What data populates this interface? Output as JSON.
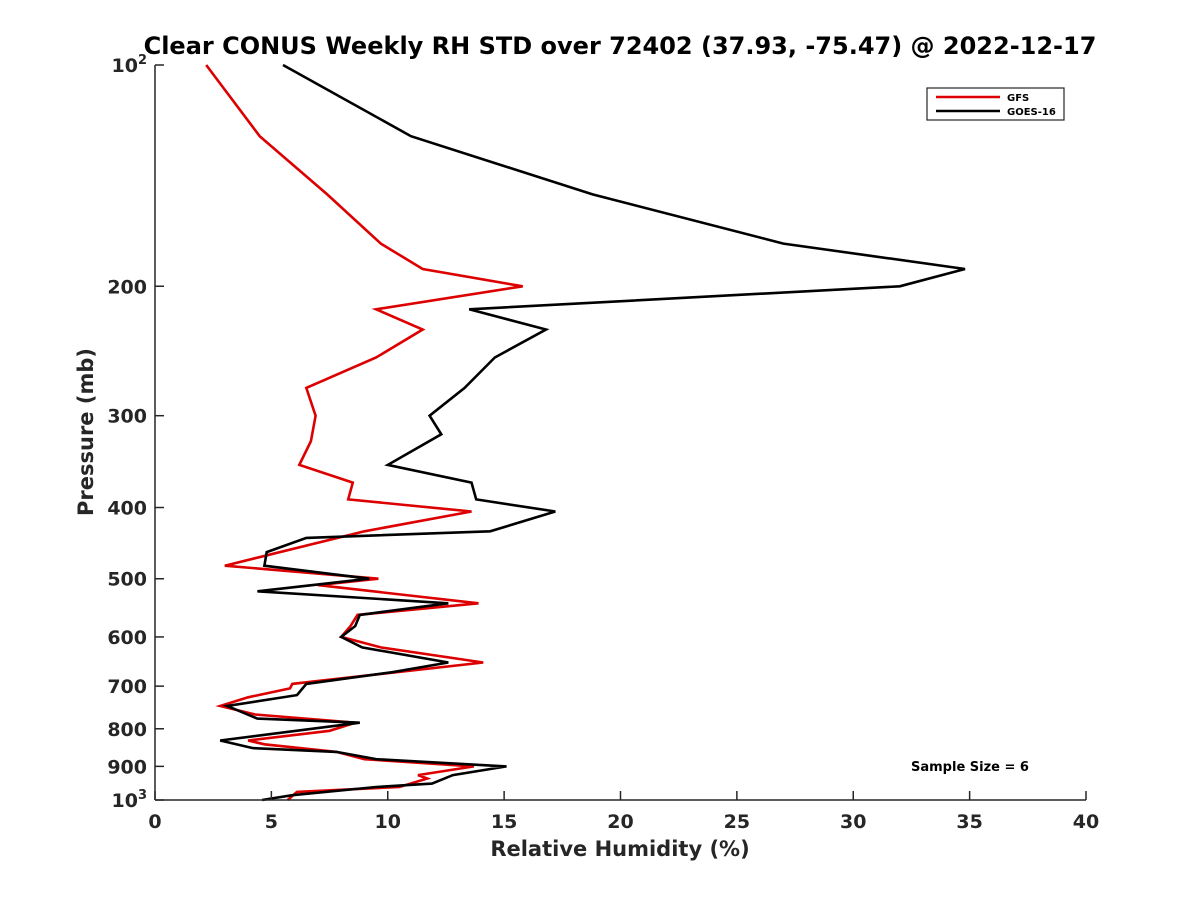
{
  "chart_data": {
    "type": "line",
    "title": "Clear CONUS Weekly RH STD over 72402 (37.93, -75.47) @ 2022-12-17",
    "xlabel": "Relative Humidity (%)",
    "ylabel": "Pressure (mb)",
    "xlim": [
      0,
      40
    ],
    "ylim": [
      100,
      1000
    ],
    "yscale": "log",
    "y_reversed": true,
    "grid": false,
    "legend_position": "top-right",
    "x_ticks": [
      0,
      5,
      10,
      15,
      20,
      25,
      30,
      35,
      40
    ],
    "x_tick_labels": [
      "0",
      "5",
      "10",
      "15",
      "20",
      "25",
      "30",
      "35",
      "40"
    ],
    "y_ticks": [
      100,
      200,
      300,
      400,
      500,
      600,
      700,
      800,
      900,
      1000
    ],
    "y_tick_labels": [
      {
        "base": "10",
        "exp": "2"
      },
      {
        "base": "200",
        "exp": ""
      },
      {
        "base": "300",
        "exp": ""
      },
      {
        "base": "400",
        "exp": ""
      },
      {
        "base": "500",
        "exp": ""
      },
      {
        "base": "600",
        "exp": ""
      },
      {
        "base": "700",
        "exp": ""
      },
      {
        "base": "800",
        "exp": ""
      },
      {
        "base": "900",
        "exp": ""
      },
      {
        "base": "10",
        "exp": "3"
      }
    ],
    "annotation": "Sample Size = 6",
    "series": [
      {
        "name": "GFS",
        "color": "#dd0000",
        "points": [
          [
            2.2,
            100
          ],
          [
            4.5,
            125
          ],
          [
            7.4,
            150
          ],
          [
            9.7,
            175
          ],
          [
            11.5,
            189.5
          ],
          [
            15.8,
            200
          ],
          [
            9.5,
            215
          ],
          [
            11.5,
            229
          ],
          [
            9.5,
            250
          ],
          [
            6.5,
            275
          ],
          [
            6.9,
            300
          ],
          [
            6.7,
            325
          ],
          [
            6.2,
            350
          ],
          [
            8.5,
            370
          ],
          [
            8.3,
            390
          ],
          [
            13.6,
            405
          ],
          [
            9.0,
            431
          ],
          [
            3.0,
            480
          ],
          [
            9.6,
            500
          ],
          [
            7.0,
            510
          ],
          [
            13.9,
            540
          ],
          [
            8.7,
            560
          ],
          [
            8.4,
            580
          ],
          [
            8.0,
            600
          ],
          [
            9.7,
            620
          ],
          [
            14.1,
            650
          ],
          [
            5.9,
            695
          ],
          [
            5.8,
            705
          ],
          [
            4.0,
            725
          ],
          [
            2.8,
            745
          ],
          [
            4.3,
            765
          ],
          [
            8.6,
            785
          ],
          [
            7.5,
            805
          ],
          [
            4.0,
            830
          ],
          [
            4.7,
            840
          ],
          [
            7.8,
            860
          ],
          [
            9.0,
            880
          ],
          [
            13.7,
            900
          ],
          [
            11.3,
            925
          ],
          [
            11.7,
            935
          ],
          [
            10.5,
            960
          ],
          [
            6.1,
            975
          ],
          [
            5.7,
            1000
          ]
        ]
      },
      {
        "name": "GOES-16",
        "color": "#000000",
        "points": [
          [
            5.5,
            100
          ],
          [
            11.0,
            125
          ],
          [
            18.8,
            150
          ],
          [
            27.0,
            175
          ],
          [
            34.8,
            189.5
          ],
          [
            32.0,
            200
          ],
          [
            13.5,
            215
          ],
          [
            16.8,
            229
          ],
          [
            14.6,
            250
          ],
          [
            13.3,
            275
          ],
          [
            11.8,
            300
          ],
          [
            12.3,
            318
          ],
          [
            10.0,
            350
          ],
          [
            13.6,
            370
          ],
          [
            13.8,
            390
          ],
          [
            17.2,
            405
          ],
          [
            14.4,
            431
          ],
          [
            6.5,
            440
          ],
          [
            4.8,
            460
          ],
          [
            4.7,
            480
          ],
          [
            9.2,
            500
          ],
          [
            4.4,
            520
          ],
          [
            12.6,
            540
          ],
          [
            8.8,
            560
          ],
          [
            8.6,
            580
          ],
          [
            8.0,
            600
          ],
          [
            8.9,
            620
          ],
          [
            12.6,
            650
          ],
          [
            10.2,
            670
          ],
          [
            6.5,
            695
          ],
          [
            6.1,
            720
          ],
          [
            3.1,
            745
          ],
          [
            4.4,
            775
          ],
          [
            8.8,
            785
          ],
          [
            2.8,
            830
          ],
          [
            4.2,
            850
          ],
          [
            7.8,
            860
          ],
          [
            9.5,
            880
          ],
          [
            15.1,
            900
          ],
          [
            12.8,
            925
          ],
          [
            11.9,
            950
          ],
          [
            9.5,
            960
          ],
          [
            5.9,
            985
          ],
          [
            4.6,
            1000
          ]
        ]
      }
    ]
  }
}
